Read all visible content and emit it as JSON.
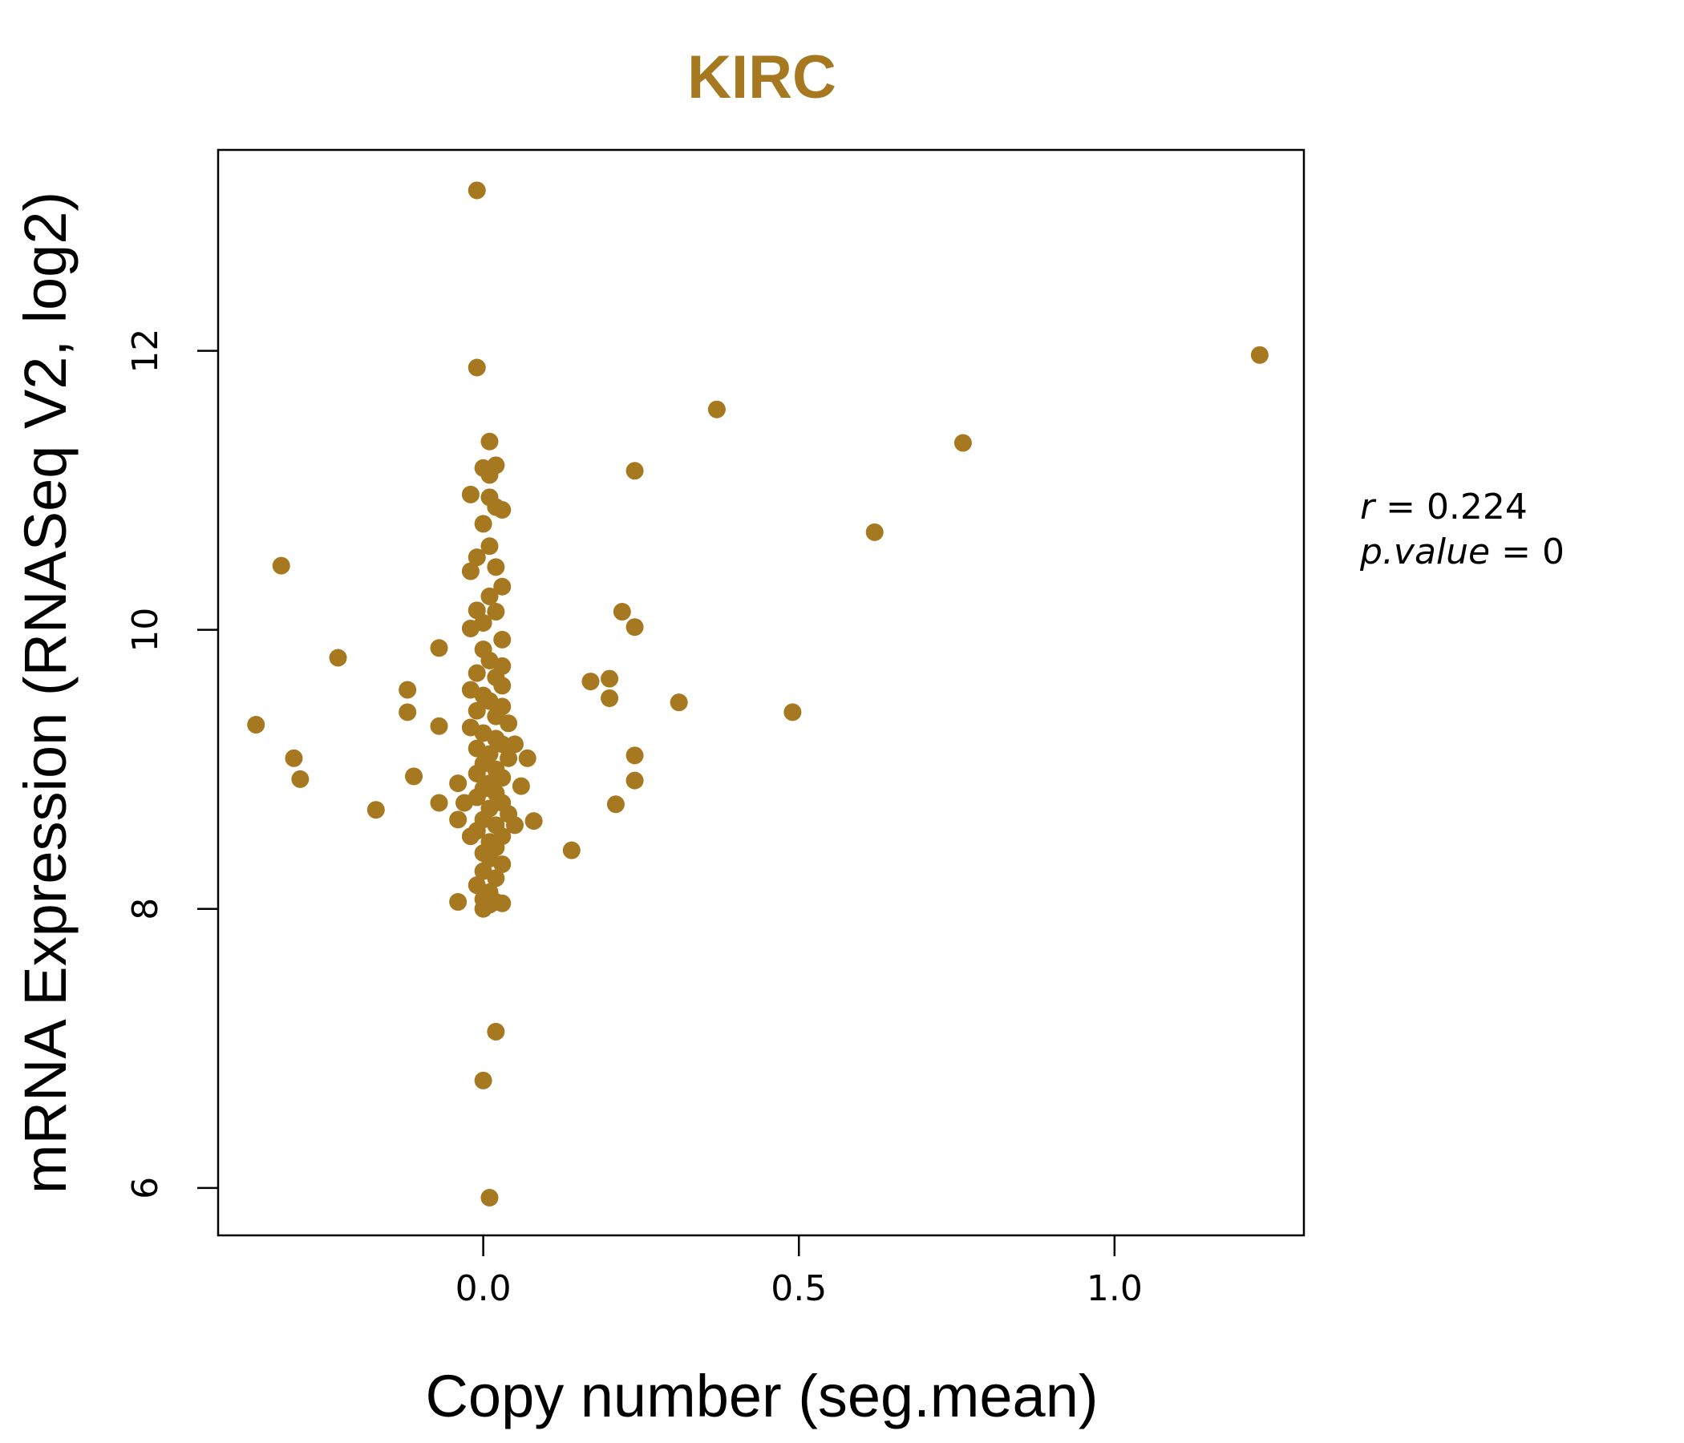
{
  "chart_data": {
    "type": "scatter",
    "title": "KIRC",
    "xlabel": "Copy number (seg.mean)",
    "ylabel": "mRNA Expression (RNASeq V2, log2)",
    "xlim": [
      -0.42,
      1.3
    ],
    "ylim": [
      5.66,
      13.44
    ],
    "x_ticks": [
      "0.0",
      "0.5",
      "1.0"
    ],
    "y_ticks": [
      "6",
      "8",
      "10",
      "12"
    ],
    "x_tick_values": [
      0.0,
      0.5,
      1.0
    ],
    "y_tick_values": [
      6,
      8,
      10,
      12
    ],
    "grid": false,
    "point_color": "#A67820",
    "stats": {
      "r_label": "r",
      "r_value": "0.224",
      "p_label": "p.value",
      "p_value": "0"
    },
    "points": [
      [
        -0.01,
        13.15
      ],
      [
        -0.01,
        11.88
      ],
      [
        1.23,
        11.97
      ],
      [
        0.37,
        11.58
      ],
      [
        0.76,
        11.34
      ],
      [
        0.24,
        11.14
      ],
      [
        0.62,
        10.7
      ],
      [
        0.22,
        10.13
      ],
      [
        0.24,
        10.02
      ],
      [
        0.31,
        9.48
      ],
      [
        0.49,
        9.41
      ],
      [
        0.17,
        9.63
      ],
      [
        0.2,
        9.65
      ],
      [
        0.2,
        9.51
      ],
      [
        0.24,
        9.1
      ],
      [
        0.24,
        8.92
      ],
      [
        0.21,
        8.75
      ],
      [
        0.14,
        8.42
      ],
      [
        0.07,
        9.08
      ],
      [
        0.08,
        8.63
      ],
      [
        0.06,
        8.88
      ],
      [
        0.05,
        9.18
      ],
      [
        0.05,
        8.6
      ],
      [
        -0.36,
        9.32
      ],
      [
        -0.32,
        10.46
      ],
      [
        -0.3,
        9.08
      ],
      [
        -0.29,
        8.93
      ],
      [
        -0.23,
        9.8
      ],
      [
        -0.17,
        8.71
      ],
      [
        -0.12,
        9.57
      ],
      [
        -0.12,
        9.41
      ],
      [
        -0.11,
        8.95
      ],
      [
        -0.07,
        9.87
      ],
      [
        -0.07,
        9.31
      ],
      [
        -0.07,
        8.76
      ],
      [
        -0.04,
        8.05
      ],
      [
        -0.04,
        8.9
      ],
      [
        -0.04,
        8.64
      ],
      [
        -0.03,
        8.76
      ],
      [
        -0.02,
        8.52
      ],
      [
        0.01,
        11.35
      ],
      [
        0.0,
        11.16
      ],
      [
        0.02,
        11.18
      ],
      [
        0.01,
        11.11
      ],
      [
        -0.02,
        10.97
      ],
      [
        0.01,
        10.95
      ],
      [
        0.02,
        10.88
      ],
      [
        0.03,
        10.86
      ],
      [
        0.0,
        10.76
      ],
      [
        0.01,
        10.6
      ],
      [
        -0.01,
        10.52
      ],
      [
        0.02,
        10.45
      ],
      [
        -0.02,
        10.42
      ],
      [
        0.03,
        10.31
      ],
      [
        0.01,
        10.24
      ],
      [
        0.02,
        10.13
      ],
      [
        -0.01,
        10.14
      ],
      [
        0.0,
        10.05
      ],
      [
        -0.02,
        10.01
      ],
      [
        0.03,
        9.93
      ],
      [
        0.0,
        9.86
      ],
      [
        0.01,
        9.78
      ],
      [
        0.03,
        9.74
      ],
      [
        -0.01,
        9.69
      ],
      [
        0.02,
        9.66
      ],
      [
        0.03,
        9.6
      ],
      [
        -0.02,
        9.57
      ],
      [
        0.0,
        9.53
      ],
      [
        0.01,
        9.49
      ],
      [
        0.03,
        9.45
      ],
      [
        -0.01,
        9.42
      ],
      [
        0.02,
        9.38
      ],
      [
        0.04,
        9.33
      ],
      [
        -0.02,
        9.3
      ],
      [
        0.0,
        9.26
      ],
      [
        0.02,
        9.22
      ],
      [
        0.03,
        9.18
      ],
      [
        -0.01,
        9.15
      ],
      [
        0.01,
        9.11
      ],
      [
        0.04,
        9.08
      ],
      [
        0.0,
        9.04
      ],
      [
        0.02,
        9.0
      ],
      [
        -0.01,
        8.97
      ],
      [
        0.03,
        8.94
      ],
      [
        0.01,
        8.9
      ],
      [
        0.0,
        8.86
      ],
      [
        0.02,
        8.83
      ],
      [
        -0.01,
        8.8
      ],
      [
        0.03,
        8.76
      ],
      [
        0.01,
        8.72
      ],
      [
        0.04,
        8.68
      ],
      [
        0.0,
        8.64
      ],
      [
        0.02,
        8.6
      ],
      [
        -0.01,
        8.56
      ],
      [
        0.03,
        8.52
      ],
      [
        0.01,
        8.48
      ],
      [
        0.02,
        8.44
      ],
      [
        0.0,
        8.4
      ],
      [
        0.01,
        8.36
      ],
      [
        0.03,
        8.32
      ],
      [
        0.0,
        8.27
      ],
      [
        0.02,
        8.22
      ],
      [
        -0.01,
        8.17
      ],
      [
        0.01,
        8.12
      ],
      [
        0.0,
        8.07
      ],
      [
        0.02,
        8.05
      ],
      [
        0.01,
        8.03
      ],
      [
        0.0,
        8.0
      ],
      [
        0.03,
        8.04
      ],
      [
        0.02,
        7.12
      ],
      [
        0.0,
        6.77
      ],
      [
        0.01,
        5.93
      ]
    ]
  }
}
